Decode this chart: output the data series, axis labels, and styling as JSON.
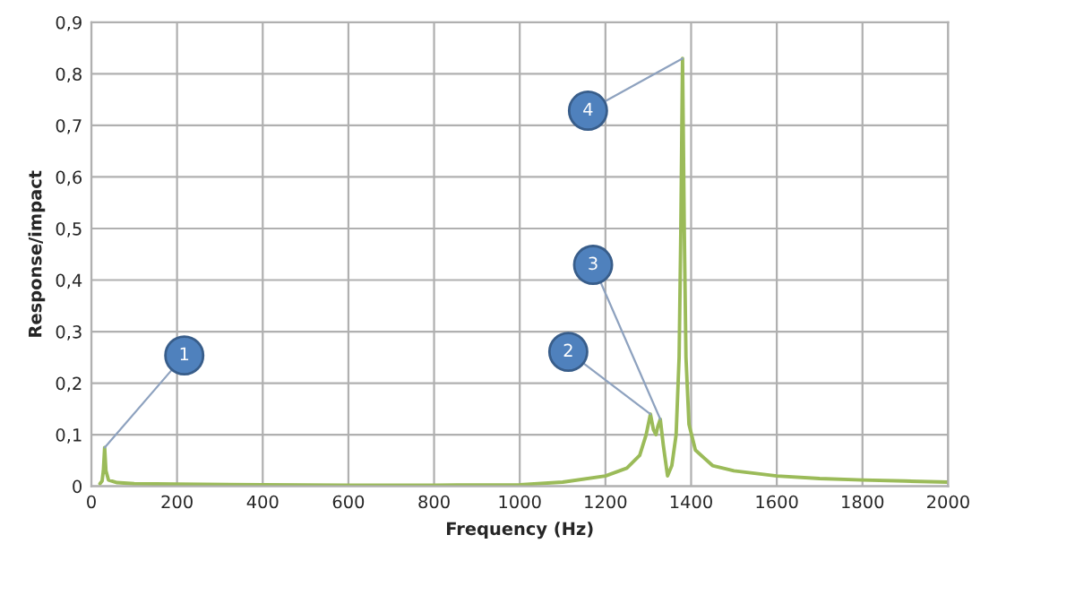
{
  "chart_data": {
    "type": "line",
    "xlabel": "Frequency (Hz)",
    "ylabel": "Response/impact",
    "x": [
      20,
      25,
      28,
      31,
      34,
      40,
      60,
      100,
      200,
      400,
      600,
      800,
      1000,
      1100,
      1200,
      1250,
      1280,
      1295,
      1305,
      1312,
      1318,
      1322,
      1328,
      1335,
      1345,
      1355,
      1365,
      1372,
      1376,
      1380,
      1384,
      1388,
      1395,
      1410,
      1450,
      1500,
      1600,
      1700,
      1800,
      1900,
      2000
    ],
    "series": [
      {
        "color": "#9bbb59",
        "values": [
          0.005,
          0.01,
          0.03,
          0.075,
          0.03,
          0.012,
          0.007,
          0.005,
          0.004,
          0.003,
          0.002,
          0.002,
          0.003,
          0.008,
          0.02,
          0.035,
          0.06,
          0.1,
          0.14,
          0.11,
          0.1,
          0.115,
          0.13,
          0.08,
          0.02,
          0.04,
          0.1,
          0.25,
          0.5,
          0.83,
          0.5,
          0.25,
          0.12,
          0.07,
          0.04,
          0.03,
          0.02,
          0.015,
          0.012,
          0.01,
          0.008
        ]
      }
    ],
    "xlim": [
      0,
      2000
    ],
    "xticks": [
      0,
      200,
      400,
      600,
      800,
      1000,
      1200,
      1400,
      1600,
      1800,
      2000
    ],
    "ylim": [
      0,
      0.9
    ],
    "yticks": [
      0,
      {
        "value": 0.1,
        "label": "0,1"
      },
      {
        "value": 0.2,
        "label": "0,2"
      },
      {
        "value": 0.3,
        "label": "0,3"
      },
      {
        "value": 0.4,
        "label": "0,4"
      },
      {
        "value": 0.5,
        "label": "0,5"
      },
      {
        "value": 0.6,
        "label": "0,6"
      },
      {
        "value": 0.7,
        "label": "0,7"
      },
      {
        "value": 0.8,
        "label": "0,8"
      },
      {
        "value": 0.9,
        "label": "0,9"
      }
    ],
    "grid": true,
    "marker": "none",
    "line_style": "solid",
    "annotations": [
      {
        "text": "1",
        "x": 31,
        "y": 0.075
      },
      {
        "text": "2",
        "x": 1305,
        "y": 0.14
      },
      {
        "text": "3",
        "x": 1328,
        "y": 0.13
      },
      {
        "text": "4",
        "x": 1380,
        "y": 0.83
      }
    ]
  }
}
